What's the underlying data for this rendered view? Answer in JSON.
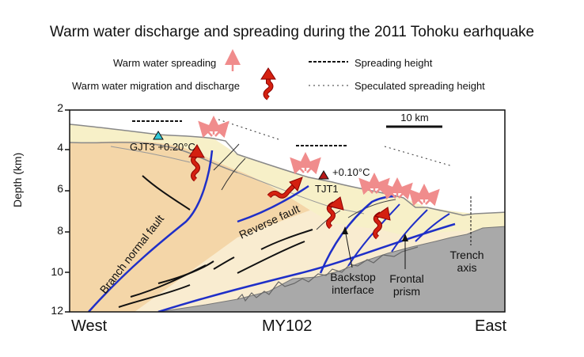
{
  "title": "Warm water discharge and spreading during the 2011 Tohoku earhquake",
  "legend": {
    "warm_water_spreading": "Warm water spreading",
    "warm_water_migration": "Warm water migration and discharge",
    "spreading_height": "Spreading height",
    "speculated_spreading_height": "Speculated spreading height"
  },
  "axis": {
    "ylabel": "Depth (km)",
    "ticks": [
      "2",
      "4",
      "6",
      "8",
      "10",
      "12"
    ]
  },
  "scale_bar": "10 km",
  "sites": {
    "gjt3": "GJT3 +0.20°C",
    "tjt1_temp": "+0.10°C",
    "tjt1": "TJT1"
  },
  "faults": {
    "branch_normal": "Branch normal fault",
    "reverse": "Reverse fault"
  },
  "annotations": {
    "backstop_1": "Backstop",
    "backstop_2": "interface",
    "frontal_1": "Frontal",
    "frontal_2": "prism",
    "trench_1": "Trench",
    "trench_2": "axis"
  },
  "bottom": {
    "west": "West",
    "profile": "MY102",
    "east": "East"
  },
  "colors": {
    "spreading_arrow": "#f08c8c",
    "migration_arrow": "#d42010",
    "fault_line": "#1f2fc8",
    "basement": "#a9a9a9",
    "upper_layer": "#f7f0c8",
    "lower_layer": "#f4d6a8",
    "gjt3_marker": "#30c8d8",
    "tjt1_marker": "#b81818"
  }
}
